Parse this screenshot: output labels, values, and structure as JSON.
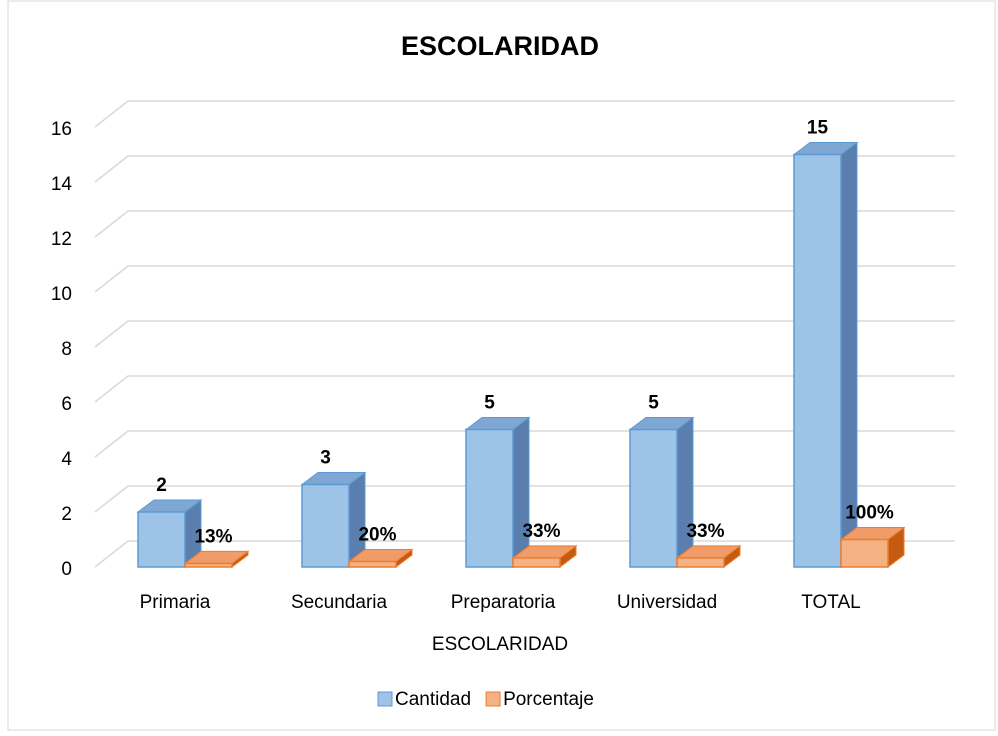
{
  "chart_data": {
    "type": "bar3d",
    "title": "ESCOLARIDAD",
    "x_label": "ESCOLARIDAD",
    "categories": [
      "Primaria",
      "Secundaria",
      "Preparatoria",
      "Universidad",
      "TOTAL"
    ],
    "series": [
      {
        "name": "Cantidad",
        "color": "#9dc3e6",
        "values": [
          2,
          3,
          5,
          5,
          15
        ]
      },
      {
        "name": "Porcentaje",
        "color": "#f4b183",
        "values": [
          0.13,
          0.2,
          0.33,
          0.33,
          1
        ],
        "value_labels": [
          "13%",
          "20%",
          "33%",
          "33%",
          "100%"
        ]
      }
    ],
    "ylim": [
      0,
      16
    ],
    "yticks": [
      0,
      2,
      4,
      6,
      8,
      10,
      12,
      14,
      16
    ],
    "grid": true,
    "legend": "bottom"
  }
}
